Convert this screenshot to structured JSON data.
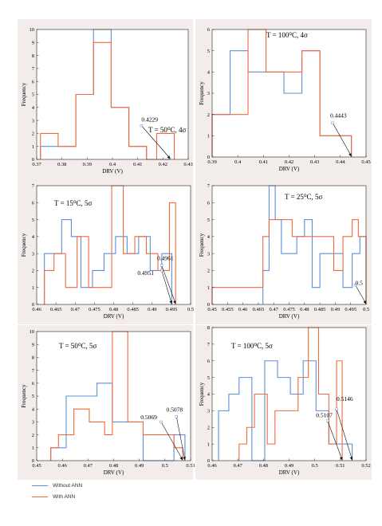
{
  "colors": {
    "without_ann": "#5b8fd9",
    "with_ann": "#f26a3b",
    "panel_bg": "#f2edeb"
  },
  "legend": [
    {
      "label": "Without ANN",
      "color": "#5b8fd9"
    },
    {
      "label": "With ANN",
      "color": "#f26a3b"
    }
  ],
  "chart_data": [
    {
      "type": "histogram",
      "title": "T = 50⁰C, 4σ",
      "xlabel": "DRV (V)",
      "ylabel": "Frequency",
      "xlim": [
        0.37,
        0.43
      ],
      "ylim": [
        0,
        10
      ],
      "xticks": [
        0.37,
        0.38,
        0.39,
        0.4,
        0.41,
        0.42,
        0.43
      ],
      "xtick_labels": [
        "0.37",
        "0.38",
        "0.39",
        "0.4",
        "0.41",
        "0.42",
        "0.43"
      ],
      "yticks": [
        0,
        1,
        2,
        3,
        4,
        5,
        6,
        7,
        8,
        9,
        10
      ],
      "ytick_labels": [
        "0",
        "1",
        "2",
        "3",
        "4",
        "5",
        "6",
        "7",
        "8",
        "9",
        "10"
      ],
      "series": [
        {
          "name": "Without ANN",
          "color": "#5b8fd9",
          "edges": [
            0.3715,
            0.3785,
            0.3855,
            0.3925,
            0.3995,
            0.4065,
            0.4135,
            0.4205,
            0.4229
          ],
          "counts": [
            1,
            1,
            5,
            10,
            4,
            1,
            0,
            0
          ]
        },
        {
          "name": "With ANN",
          "color": "#f26a3b",
          "edges": [
            0.3715,
            0.3785,
            0.3855,
            0.3925,
            0.3995,
            0.4065,
            0.4135,
            0.4175,
            0.4245
          ],
          "counts": [
            2,
            1,
            5,
            9,
            4,
            1,
            0,
            2
          ]
        }
      ],
      "annotations": [
        {
          "label": "0.4229",
          "x": 0.4229,
          "y": 0,
          "label_x": 0.4115,
          "label_y": 2.9,
          "marker_x": 0.4115,
          "marker_y": 2.6
        }
      ]
    },
    {
      "type": "histogram",
      "title": "T = 100⁰C, 4σ",
      "xlabel": "DRV (V)",
      "ylabel": "Frequency",
      "xlim": [
        0.39,
        0.45
      ],
      "ylim": [
        0,
        6
      ],
      "xticks": [
        0.39,
        0.4,
        0.41,
        0.42,
        0.43,
        0.44,
        0.45
      ],
      "xtick_labels": [
        "0.39",
        "0.4",
        "0.41",
        "0.42",
        "0.43",
        "0.44",
        "0.45"
      ],
      "yticks": [
        0,
        1,
        2,
        3,
        4,
        5,
        6
      ],
      "ytick_labels": [
        "0",
        "1",
        "2",
        "3",
        "4",
        "5",
        "6"
      ],
      "series": [
        {
          "name": "Without ANN",
          "color": "#5b8fd9",
          "edges": [
            0.39,
            0.397,
            0.404,
            0.411,
            0.418,
            0.425,
            0.432,
            0.4443
          ],
          "counts": [
            2,
            5,
            4,
            4,
            3,
            5,
            1
          ]
        },
        {
          "name": "With ANN",
          "color": "#f26a3b",
          "edges": [
            0.39,
            0.397,
            0.404,
            0.411,
            0.418,
            0.425,
            0.432,
            0.4443
          ],
          "counts": [
            2,
            2,
            6,
            4,
            4,
            5,
            1
          ]
        }
      ],
      "annotations": [
        {
          "label": "0.4443",
          "x": 0.4443,
          "y": 0,
          "label_x": 0.436,
          "label_y": 1.85,
          "marker_x": 0.437,
          "marker_y": 1.6
        }
      ]
    },
    {
      "type": "histogram",
      "title": "T = 15⁰C, 5σ",
      "xlabel": "DRV (V)",
      "ylabel": "Frequency",
      "xlim": [
        0.46,
        0.5
      ],
      "ylim": [
        0,
        7
      ],
      "xticks": [
        0.46,
        0.465,
        0.47,
        0.475,
        0.48,
        0.485,
        0.49,
        0.495,
        0.5
      ],
      "xtick_labels": [
        "0.46",
        "0.465",
        "0.47",
        "0.475",
        "0.48",
        "0.485",
        "0.49",
        "0.495",
        "0.5"
      ],
      "yticks": [
        0,
        1,
        2,
        3,
        4,
        5,
        6,
        7
      ],
      "ytick_labels": [
        "0",
        "1",
        "2",
        "3",
        "4",
        "5",
        "6",
        "7"
      ],
      "series": [
        {
          "name": "Without ANN",
          "color": "#5b8fd9",
          "edges": [
            0.462,
            0.464,
            0.4665,
            0.469,
            0.4715,
            0.4745,
            0.4775,
            0.4805,
            0.4835,
            0.4865,
            0.4895,
            0.4925,
            0.4951
          ],
          "counts": [
            3,
            3,
            5,
            4,
            1,
            2,
            3,
            4,
            3,
            4,
            2,
            3
          ]
        },
        {
          "name": "With ANN",
          "color": "#f26a3b",
          "edges": [
            0.462,
            0.4645,
            0.4675,
            0.4705,
            0.4735,
            0.4765,
            0.4795,
            0.4825,
            0.4855,
            0.4885,
            0.4915,
            0.4945,
            0.4961
          ],
          "counts": [
            2,
            3,
            1,
            4,
            1,
            1,
            7,
            3,
            4,
            3,
            2,
            6
          ]
        }
      ],
      "annotations": [
        {
          "label": "0.4961",
          "x": 0.4961,
          "y": 0,
          "label_x": 0.4913,
          "label_y": 2.6,
          "marker_x": 0.4925,
          "marker_y": 2.3
        },
        {
          "label": "0.4951",
          "x": 0.4951,
          "y": 0,
          "label_x": 0.4862,
          "label_y": 1.75,
          "marker_x": 0.4925,
          "marker_y": 2.0
        }
      ]
    },
    {
      "type": "histogram",
      "title": "T = 25⁰C, 5σ",
      "xlabel": "DRV (V)",
      "ylabel": "Frequency",
      "xlim": [
        0.45,
        0.5
      ],
      "ylim": [
        0,
        7
      ],
      "xticks": [
        0.45,
        0.455,
        0.46,
        0.465,
        0.47,
        0.475,
        0.48,
        0.485,
        0.49,
        0.495,
        0.5
      ],
      "xtick_labels": [
        "0.45",
        "0.455",
        "0.46",
        "0.465",
        "0.47",
        "0.475",
        "0.48",
        "0.485",
        "0.49",
        "0.495",
        "0.5"
      ],
      "yticks": [
        0,
        1,
        2,
        3,
        4,
        5,
        6,
        7
      ],
      "ytick_labels": [
        "0",
        "1",
        "2",
        "3",
        "4",
        "5",
        "6",
        "7"
      ],
      "series": [
        {
          "name": "Without ANN",
          "color": "#5b8fd9",
          "edges": [
            0.4665,
            0.4685,
            0.4705,
            0.4725,
            0.475,
            0.4775,
            0.48,
            0.4825,
            0.485,
            0.4895,
            0.4925,
            0.4955,
            0.498,
            0.5
          ],
          "counts": [
            2,
            7,
            5,
            3,
            3,
            4,
            5,
            1,
            3,
            3,
            1,
            3,
            4
          ]
        },
        {
          "name": "With ANN",
          "color": "#f26a3b",
          "edges": [
            0.45,
            0.4665,
            0.4685,
            0.473,
            0.476,
            0.484,
            0.4895,
            0.4925,
            0.4955,
            0.4975,
            0.5
          ],
          "counts": [
            1,
            4,
            5,
            5,
            4,
            4,
            2,
            4,
            5,
            4
          ]
        }
      ],
      "annotations": [
        {
          "label": "0.5",
          "x": 0.5,
          "y": 0,
          "label_x": 0.4965,
          "label_y": 1.15,
          "marker_x": 0.4965,
          "marker_y": 1.15
        }
      ]
    },
    {
      "type": "histogram",
      "title": "T = 50⁰C, 5σ",
      "xlabel": "DRV (V)",
      "ylabel": "Frequency",
      "xlim": [
        0.45,
        0.51
      ],
      "ylim": [
        0,
        10
      ],
      "xticks": [
        0.45,
        0.46,
        0.47,
        0.48,
        0.49,
        0.5,
        0.51
      ],
      "xtick_labels": [
        "0.45",
        "0.46",
        "0.47",
        "0.48",
        "0.49",
        "0.5",
        "0.51"
      ],
      "yticks": [
        0,
        1,
        2,
        3,
        4,
        5,
        6,
        7,
        8,
        9,
        10
      ],
      "ytick_labels": [
        "0",
        "1",
        "2",
        "3",
        "4",
        "5",
        "6",
        "7",
        "8",
        "9",
        "10"
      ],
      "series": [
        {
          "name": "Without ANN",
          "color": "#5b8fd9",
          "edges": [
            0.4555,
            0.4615,
            0.4675,
            0.4735,
            0.4795,
            0.4855,
            0.4915,
            0.4975,
            0.5035,
            0.5078
          ],
          "counts": [
            1,
            5,
            5,
            6,
            3,
            3,
            0,
            0,
            2
          ]
        },
        {
          "name": "With ANN",
          "color": "#f26a3b",
          "edges": [
            0.4555,
            0.4585,
            0.4645,
            0.4705,
            0.4765,
            0.4795,
            0.4855,
            0.4915,
            0.4975,
            0.5035,
            0.5069
          ],
          "counts": [
            1,
            2,
            4,
            3,
            2,
            10,
            3,
            2,
            2,
            1
          ]
        }
      ],
      "annotations": [
        {
          "label": "0.5078",
          "x": 0.5078,
          "y": 0,
          "label_x": 0.5005,
          "label_y": 3.8,
          "marker_x": 0.5045,
          "marker_y": 3.4
        },
        {
          "label": "0.5069",
          "x": 0.5069,
          "y": 0,
          "label_x": 0.4905,
          "label_y": 3.2,
          "marker_x": 0.4985,
          "marker_y": 3.0
        }
      ]
    },
    {
      "type": "histogram",
      "title": "T = 100⁰C, 5σ",
      "xlabel": "DRV (V)",
      "ylabel": "Frequency",
      "xlim": [
        0.46,
        0.52
      ],
      "ylim": [
        0,
        8
      ],
      "xticks": [
        0.46,
        0.47,
        0.48,
        0.49,
        0.5,
        0.51,
        0.52
      ],
      "xtick_labels": [
        "0.46",
        "0.47",
        "0.48",
        "0.49",
        "0.5",
        "0.51",
        "0.52"
      ],
      "yticks": [
        0,
        1,
        2,
        3,
        4,
        5,
        6,
        7,
        8
      ],
      "ytick_labels": [
        "0",
        "1",
        "2",
        "3",
        "4",
        "5",
        "6",
        "7",
        "8"
      ],
      "series": [
        {
          "name": "Without ANN",
          "color": "#5b8fd9",
          "edges": [
            0.4625,
            0.4665,
            0.4705,
            0.4755,
            0.4805,
            0.4855,
            0.4905,
            0.4955,
            0.5005,
            0.5055,
            0.5105,
            0.5146
          ],
          "counts": [
            3,
            4,
            5,
            0,
            6,
            5,
            4,
            6,
            3,
            1,
            1
          ]
        },
        {
          "name": "With ANN",
          "color": "#f26a3b",
          "edges": [
            0.4705,
            0.4735,
            0.4765,
            0.4815,
            0.4845,
            0.4875,
            0.4935,
            0.4975,
            0.5015,
            0.5055,
            0.5085,
            0.5107
          ],
          "counts": [
            1,
            2,
            4,
            1,
            3,
            3,
            5,
            8,
            4,
            1,
            6
          ]
        }
      ],
      "annotations": [
        {
          "label": "0.5146",
          "x": 0.5146,
          "y": 0,
          "label_x": 0.5085,
          "label_y": 3.6,
          "marker_x": 0.5085,
          "marker_y": 3.1
        },
        {
          "label": "0.5107",
          "x": 0.5107,
          "y": 0,
          "label_x": 0.5005,
          "label_y": 2.6,
          "marker_x": 0.505,
          "marker_y": 2.4
        }
      ]
    }
  ]
}
